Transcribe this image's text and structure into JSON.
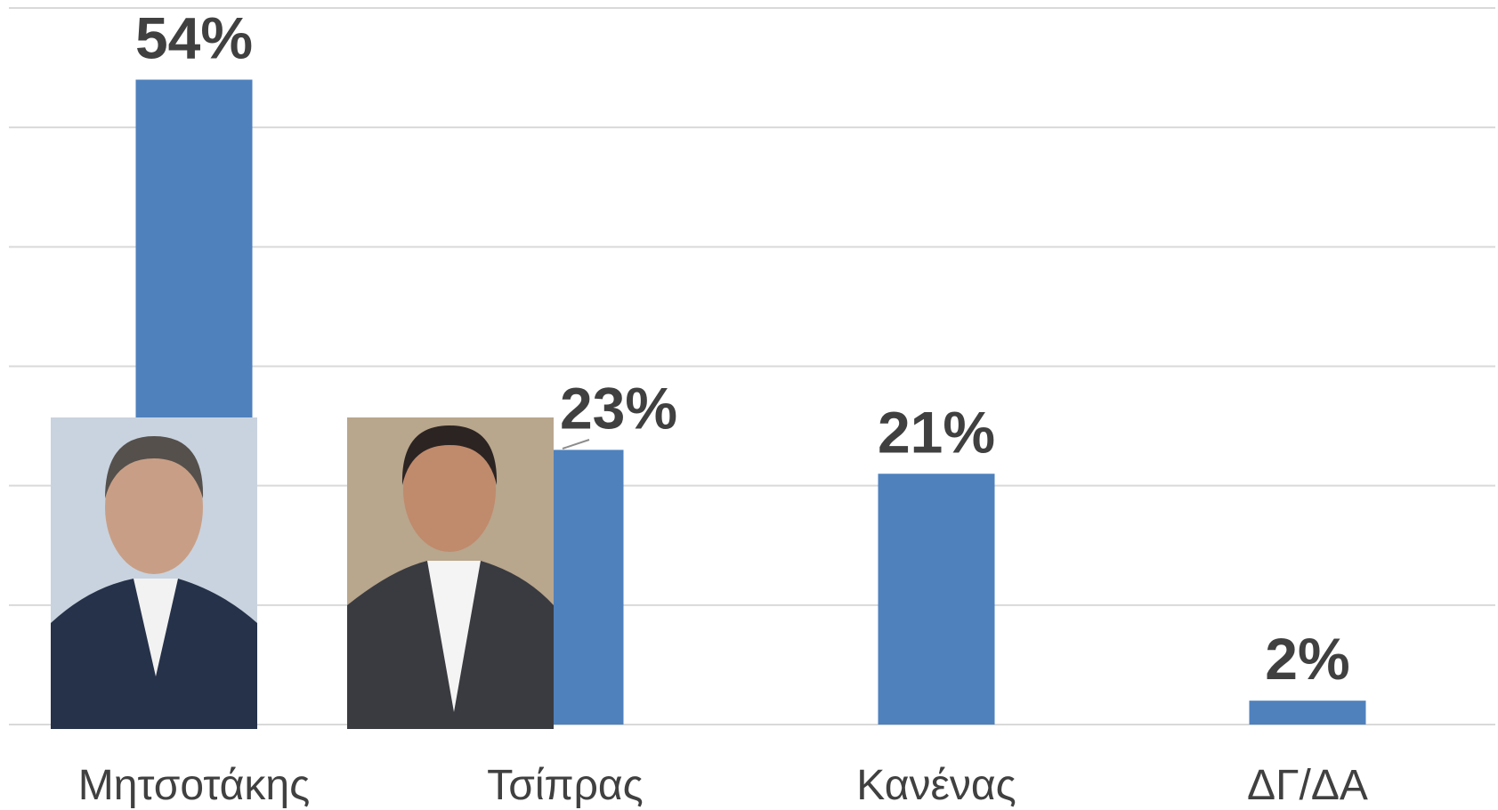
{
  "chart_data": {
    "type": "bar",
    "categories": [
      "Μητσοτάκης",
      "Τσίπρας",
      "Κανένας",
      "ΔΓ/ΔΑ"
    ],
    "values": [
      54,
      23,
      21,
      2
    ],
    "value_labels": [
      "54%",
      "23%",
      "21%",
      "2%"
    ],
    "color": "#4f81bd",
    "ylim": [
      0,
      60
    ],
    "yticks": [
      0,
      10,
      20,
      30,
      40,
      50,
      60
    ],
    "grid": true
  }
}
